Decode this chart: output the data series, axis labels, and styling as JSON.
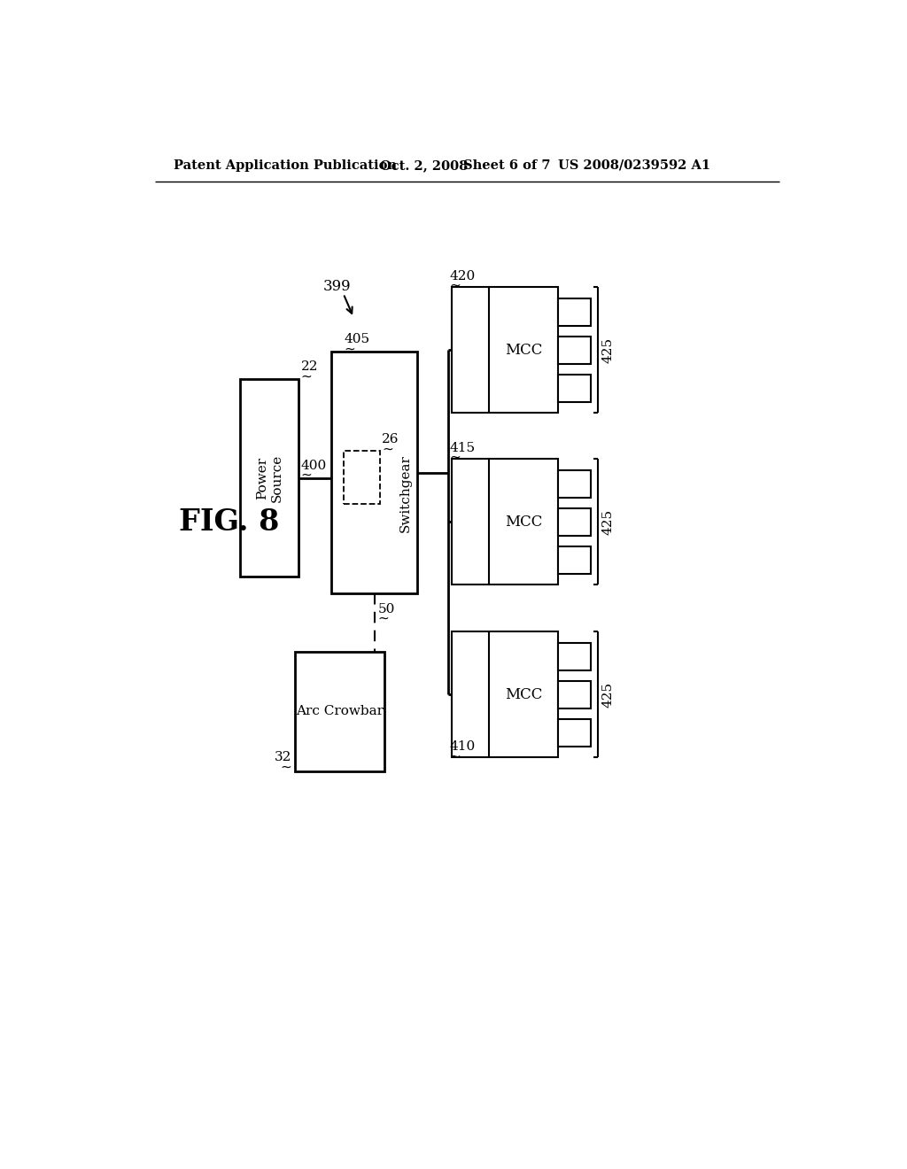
{
  "bg_color": "#ffffff",
  "line_color": "#000000",
  "header_text": "Patent Application Publication",
  "header_date": "Oct. 2, 2008",
  "header_sheet": "Sheet 6 of 7",
  "header_patent": "US 2008/0239592 A1",
  "fig_label": "FIG. 8",
  "diagram_ref": "399",
  "power_source_label": "Power\nSource",
  "power_source_ref": "22",
  "switchgear_label": "Switchgear",
  "switchgear_ref": "405",
  "internal_ref": "26",
  "arc_crowbar_label": "Arc Crowbar",
  "arc_crowbar_ref": "32",
  "conn_50": "50",
  "conn_400": "400",
  "mcc_label": "MCC",
  "ref_420": "420",
  "ref_415": "415",
  "ref_410": "410",
  "ref_425": "425"
}
